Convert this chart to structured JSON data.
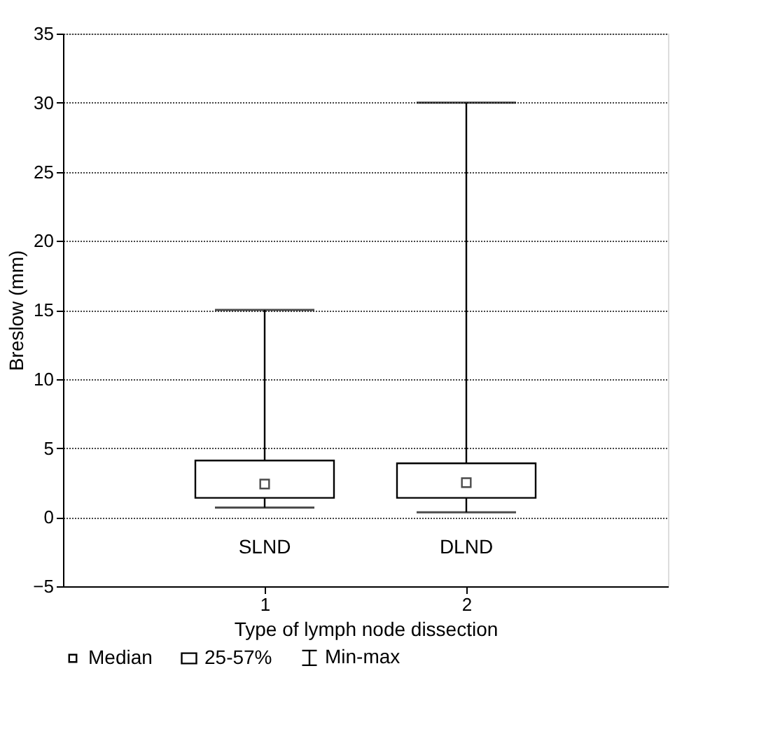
{
  "chart_data": {
    "type": "box",
    "xlabel": "Type of lymph node dissection",
    "ylabel": "Breslow (mm)",
    "categories": [
      "1",
      "2"
    ],
    "boxes": [
      {
        "low": 0.7,
        "q1": 1.4,
        "median": 2.4,
        "q3": 4.1,
        "high": 15
      },
      {
        "low": 0.35,
        "q1": 1.4,
        "median": 2.5,
        "q3": 3.9,
        "high": 30
      }
    ],
    "ylim": [
      -5,
      35
    ],
    "yticks": [
      -5,
      0,
      5,
      10,
      15,
      20,
      25,
      30,
      35
    ],
    "grid": "y",
    "annotations": [
      "SLND",
      "DLND",
      "Median",
      "25-57%",
      "Min-max"
    ]
  }
}
